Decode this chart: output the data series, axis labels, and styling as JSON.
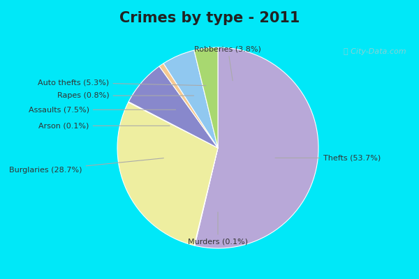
{
  "title": "Crimes by type - 2011",
  "title_fontsize": 15,
  "title_color": "#222222",
  "background_top": "#00e8f8",
  "background_main_top": "#c8e8e0",
  "background_main_bottom": "#d8f0e8",
  "watermark": "ⓘ City-Data.com",
  "slice_order": [
    "Thefts",
    "Murders",
    "Burglaries",
    "Arson",
    "Assaults",
    "Rapes",
    "Auto thefts",
    "Robberies"
  ],
  "sizes": [
    53.7,
    0.1,
    28.7,
    0.1,
    7.5,
    0.8,
    5.3,
    3.8
  ],
  "colors": [
    "#b8a8d8",
    "#d4c870",
    "#eeeea0",
    "#f0b8b8",
    "#8888cc",
    "#f5c890",
    "#90c8f0",
    "#a8d870"
  ],
  "label_texts": [
    "Thefts (53.7%)",
    "Murders (0.1%)",
    "Burglaries (28.7%)",
    "Arson (0.1%)",
    "Assaults (7.5%)",
    "Rapes (0.8%)",
    "Auto thefts (5.3%)",
    "Robberies (3.8%)"
  ],
  "startangle": 90
}
